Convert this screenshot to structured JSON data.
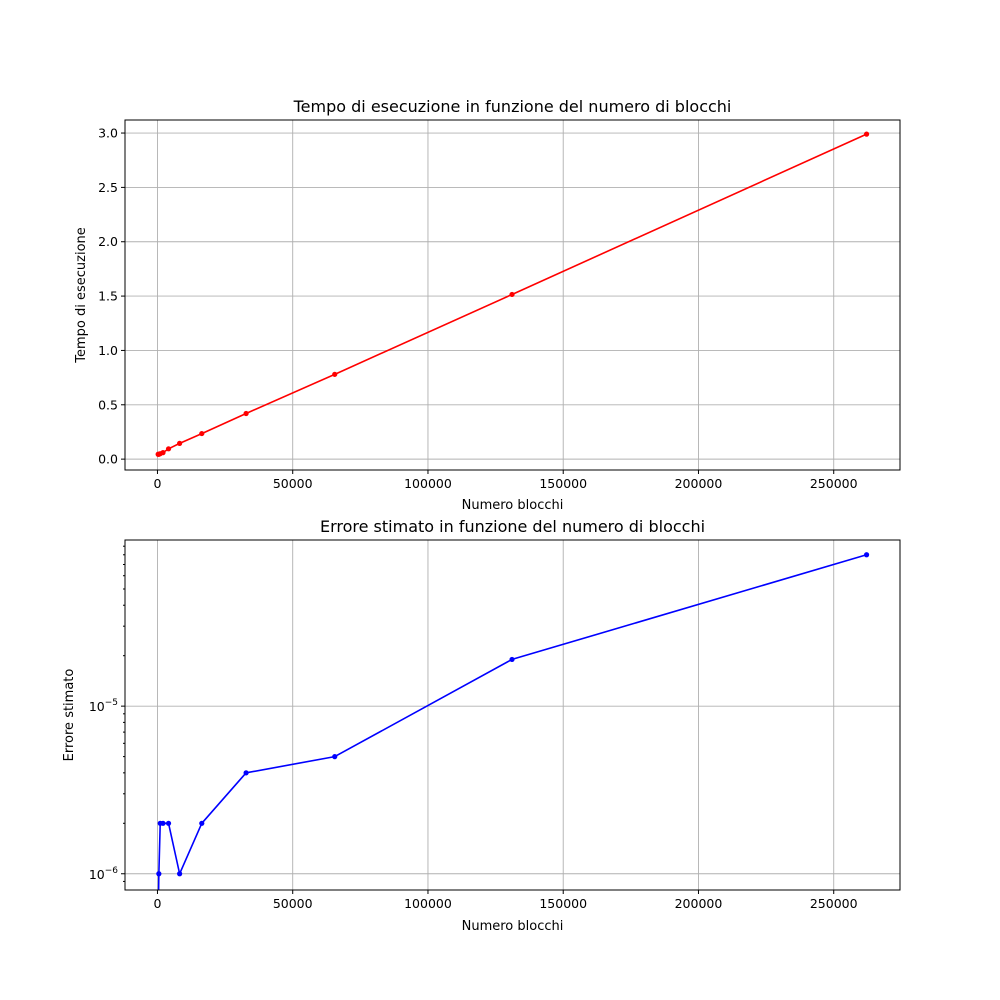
{
  "chart_data": [
    {
      "type": "line",
      "title": "Tempo di esecuzione in funzione del numero di blocchi",
      "xlabel": "Numero blocchi",
      "ylabel": "Tempo di esecuzione",
      "yscale": "linear",
      "grid": true,
      "color": "#ff0000",
      "xlim": [
        -12000,
        274500
      ],
      "ylim": [
        -0.1,
        3.12
      ],
      "xticks": [
        0,
        50000,
        100000,
        150000,
        200000,
        250000
      ],
      "xtick_labels": [
        "0",
        "50000",
        "100000",
        "150000",
        "200000",
        "250000"
      ],
      "yticks": [
        0.0,
        0.5,
        1.0,
        1.5,
        2.0,
        2.5,
        3.0
      ],
      "ytick_labels": [
        "0.0",
        "0.5",
        "1.0",
        "1.5",
        "2.0",
        "2.5",
        "3.0"
      ],
      "x": [
        256,
        512,
        1024,
        2048,
        4096,
        8192,
        16384,
        32768,
        65536,
        131072,
        262144
      ],
      "y": [
        0.045,
        0.045,
        0.05,
        0.06,
        0.095,
        0.145,
        0.235,
        0.42,
        0.78,
        1.515,
        2.99
      ]
    },
    {
      "type": "line",
      "title": "Errore stimato in funzione del numero di blocchi",
      "xlabel": "Numero blocchi",
      "ylabel": "Errore stimato",
      "yscale": "log",
      "grid": true,
      "color": "#0000ff",
      "xlim": [
        -12000,
        274500
      ],
      "ylim": [
        8e-07,
        9.8e-05
      ],
      "xticks": [
        0,
        50000,
        100000,
        150000,
        200000,
        250000
      ],
      "xtick_labels": [
        "0",
        "50000",
        "100000",
        "150000",
        "200000",
        "250000"
      ],
      "yticks": [
        1e-06,
        1e-05
      ],
      "ytick_labels": [
        {
          "base": "10",
          "exp": "−6"
        },
        {
          "base": "10",
          "exp": "−5"
        }
      ],
      "x": [
        256,
        512,
        1024,
        2048,
        4096,
        8192,
        16384,
        32768,
        65536,
        131072,
        262144
      ],
      "y": [
        5e-07,
        1e-06,
        2e-06,
        2e-06,
        2e-06,
        1e-06,
        2e-06,
        4e-06,
        5e-06,
        1.9e-05,
        8e-05
      ]
    }
  ]
}
